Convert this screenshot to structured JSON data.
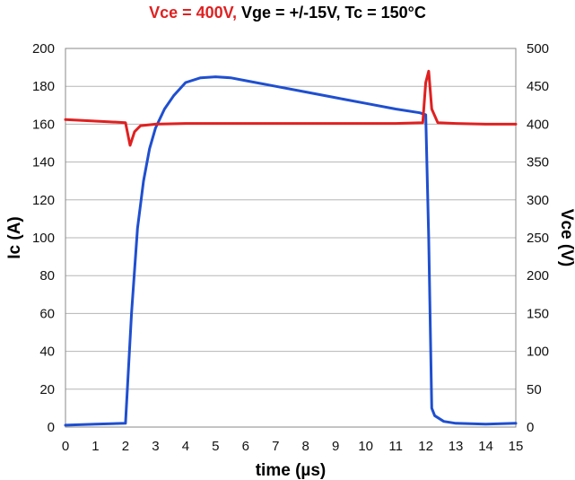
{
  "title": {
    "part1": "Vce = 400V,",
    "part2": " Vge = +/-15V, Tc = 150°C",
    "part1_color": "#e02020",
    "part2_color": "#000000"
  },
  "chart_data": {
    "type": "line",
    "title": "Vce = 400V, Vge = +/-15V, Tc = 150°C",
    "xlabel": "time (µs)",
    "ylabel": "Ic (A)",
    "y2label": "Vce (V)",
    "xlim": [
      0,
      15
    ],
    "ylim": [
      0,
      200
    ],
    "y2lim": [
      0,
      500
    ],
    "x_ticks": [
      0,
      1,
      2,
      3,
      4,
      5,
      6,
      7,
      8,
      9,
      10,
      11,
      12,
      13,
      14,
      15
    ],
    "y_ticks": [
      0,
      20,
      40,
      60,
      80,
      100,
      120,
      140,
      160,
      180,
      200
    ],
    "y2_ticks": [
      0,
      50,
      100,
      150,
      200,
      250,
      300,
      350,
      400,
      450,
      500
    ],
    "grid": true,
    "series": [
      {
        "axis": "left",
        "color": "#1f4fd0",
        "x": [
          0,
          1,
          2.0,
          2.2,
          2.4,
          2.6,
          2.8,
          3.0,
          3.3,
          3.6,
          4.0,
          4.5,
          5.0,
          5.5,
          6.0,
          7.0,
          8.0,
          9.0,
          10.0,
          11.0,
          11.8,
          12.0,
          12.1,
          12.2,
          12.3,
          12.6,
          13.0,
          14.0,
          15.0
        ],
        "y": [
          1,
          1.5,
          2,
          60,
          105,
          130,
          147,
          158,
          168,
          175,
          182,
          184.5,
          185,
          184.5,
          183,
          180,
          177,
          174,
          171,
          168,
          166,
          165,
          100,
          10,
          6,
          3,
          2,
          1.5,
          2
        ]
      },
      {
        "axis": "right",
        "color": "#e02020",
        "x": [
          0,
          1,
          2.0,
          2.15,
          2.3,
          2.5,
          3.0,
          4.0,
          5.0,
          6.0,
          7.0,
          8.0,
          9.0,
          10.0,
          11.0,
          11.9,
          12.0,
          12.1,
          12.2,
          12.4,
          13.0,
          14.0,
          15.0
        ],
        "y": [
          406,
          404,
          402,
          372,
          390,
          398,
          400,
          401,
          401,
          401,
          401,
          401,
          401,
          401,
          401,
          402,
          455,
          470,
          420,
          402,
          401,
          400,
          400
        ]
      }
    ]
  }
}
